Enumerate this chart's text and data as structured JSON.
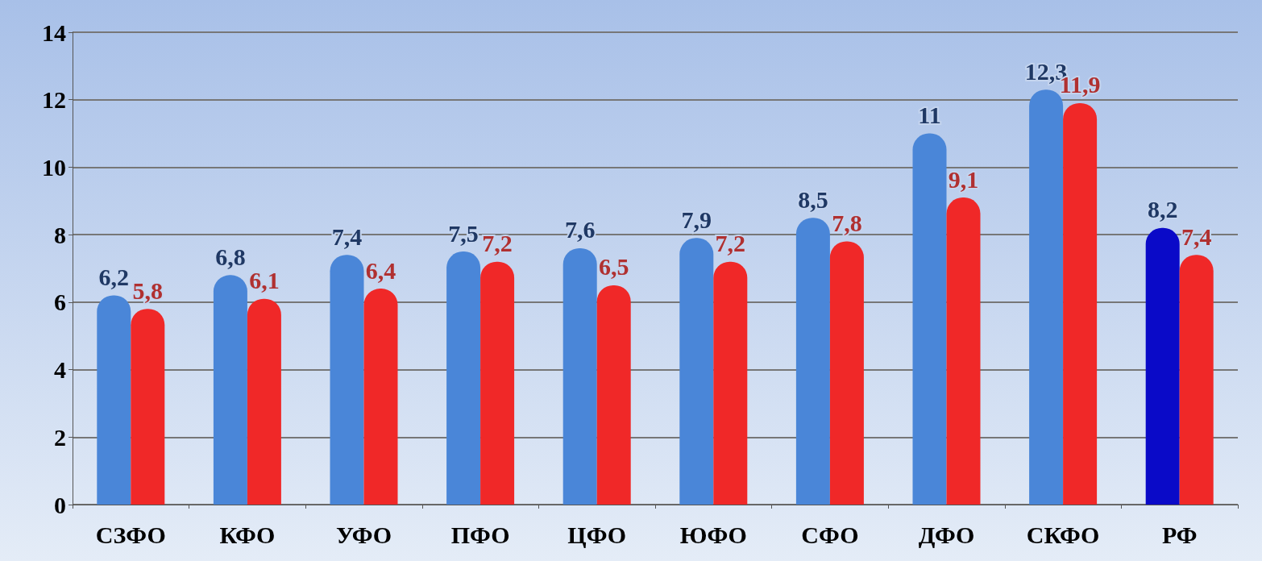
{
  "chart_data": {
    "type": "bar",
    "categories": [
      "СЗФО",
      "КФО",
      "УФО",
      "ПФО",
      "ЦФО",
      "ЮФО",
      "СФО",
      "ДФО",
      "СКФО",
      "РФ"
    ],
    "series": [
      {
        "color": "#4a86d8",
        "colors": [
          "#4a86d8",
          "#4a86d8",
          "#4a86d8",
          "#4a86d8",
          "#4a86d8",
          "#4a86d8",
          "#4a86d8",
          "#4a86d8",
          "#4a86d8",
          "#0a0ac8"
        ],
        "values": [
          6.2,
          6.8,
          7.4,
          7.5,
          7.6,
          7.9,
          8.5,
          11,
          12.3,
          8.2
        ],
        "value_labels": [
          "6,2",
          "6,8",
          "7,4",
          "7,5",
          "7,6",
          "7,9",
          "8,5",
          "11",
          "12,3",
          "8,2"
        ]
      },
      {
        "color": "#f02828",
        "values": [
          5.8,
          6.1,
          6.4,
          7.2,
          6.5,
          7.2,
          7.8,
          9.1,
          11.9,
          7.4
        ],
        "value_labels": [
          "5,8",
          "6,1",
          "6,4",
          "7,2",
          "6,5",
          "7,2",
          "7,8",
          "9,1",
          "11,9",
          "7,4"
        ]
      }
    ],
    "ylim": [
      0,
      14
    ],
    "yticks": [
      0,
      2,
      4,
      6,
      8,
      10,
      12,
      14
    ],
    "grid": "y"
  }
}
